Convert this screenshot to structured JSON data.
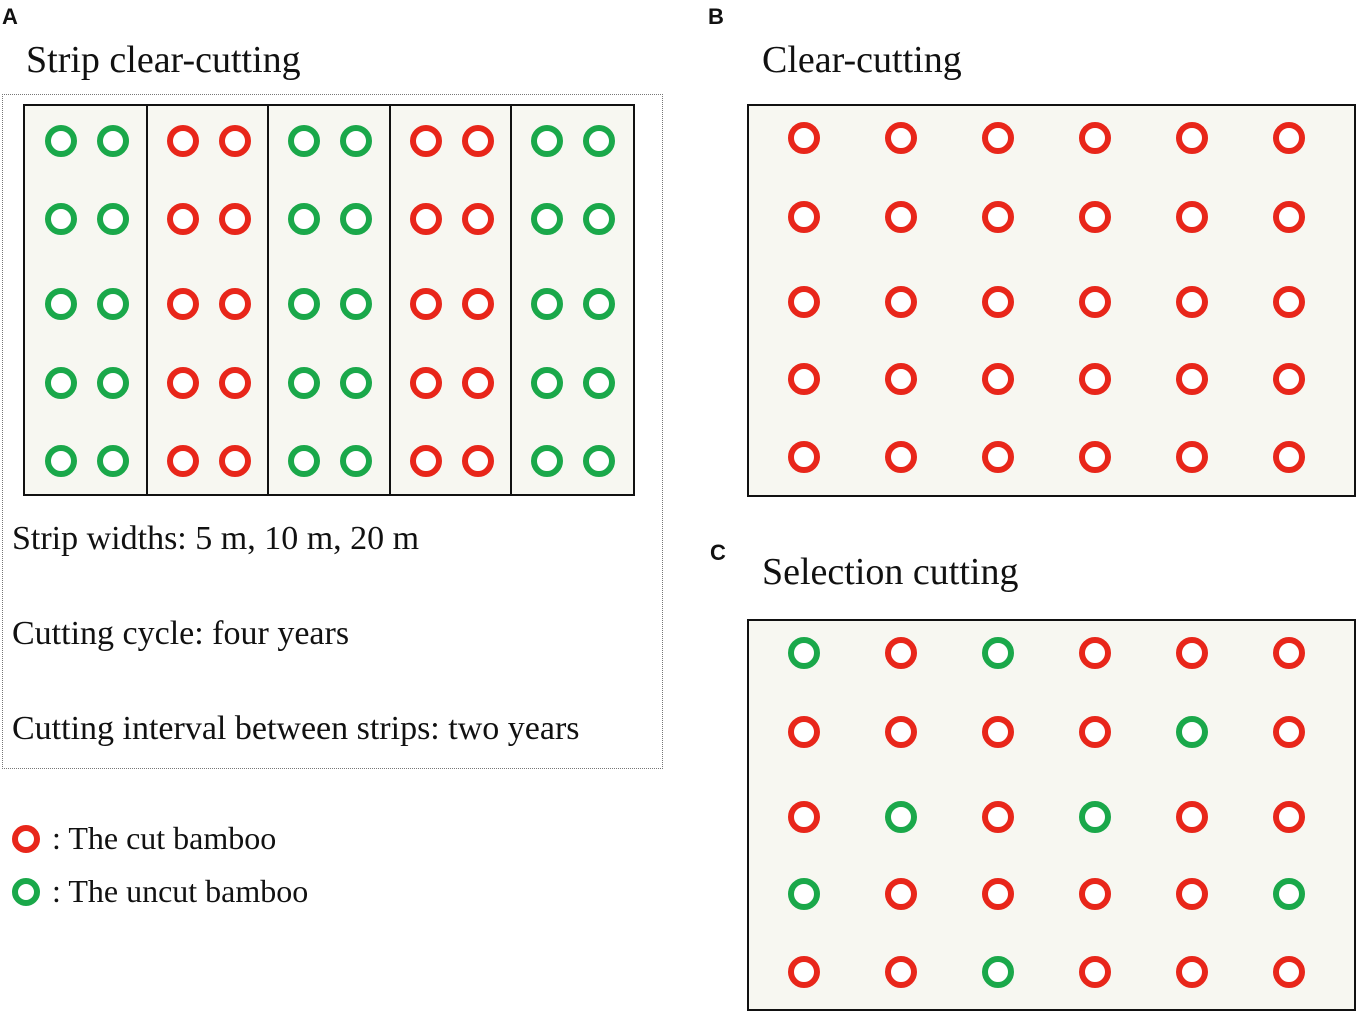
{
  "panels": {
    "a": {
      "letter": "A",
      "title": "Strip clear-cutting",
      "info": [
        "Strip widths: 5 m, 10 m, 20 m",
        "Cutting cycle: four years",
        "Cutting interval between strips: two years"
      ],
      "strips": [
        "uncut",
        "cut",
        "uncut",
        "cut",
        "uncut"
      ],
      "rows": 5,
      "per_strip": 2
    },
    "b": {
      "letter": "B",
      "title": "Clear-cutting",
      "grid": [
        [
          "cut",
          "cut",
          "cut",
          "cut",
          "cut",
          "cut"
        ],
        [
          "cut",
          "cut",
          "cut",
          "cut",
          "cut",
          "cut"
        ],
        [
          "cut",
          "cut",
          "cut",
          "cut",
          "cut",
          "cut"
        ],
        [
          "cut",
          "cut",
          "cut",
          "cut",
          "cut",
          "cut"
        ],
        [
          "cut",
          "cut",
          "cut",
          "cut",
          "cut",
          "cut"
        ]
      ]
    },
    "c": {
      "letter": "C",
      "title": "Selection cutting",
      "grid": [
        [
          "uncut",
          "cut",
          "uncut",
          "cut",
          "cut",
          "cut"
        ],
        [
          "cut",
          "cut",
          "cut",
          "cut",
          "uncut",
          "cut"
        ],
        [
          "cut",
          "uncut",
          "cut",
          "uncut",
          "cut",
          "cut"
        ],
        [
          "uncut",
          "cut",
          "cut",
          "cut",
          "cut",
          "uncut"
        ],
        [
          "cut",
          "cut",
          "uncut",
          "cut",
          "cut",
          "cut"
        ]
      ]
    }
  },
  "legend": {
    "cut_label": ": The cut bamboo",
    "uncut_label": ": The uncut bamboo"
  },
  "colors": {
    "cut": "#e8261a",
    "uncut": "#1aa84a",
    "plot_bg": "#f7f7f1"
  }
}
